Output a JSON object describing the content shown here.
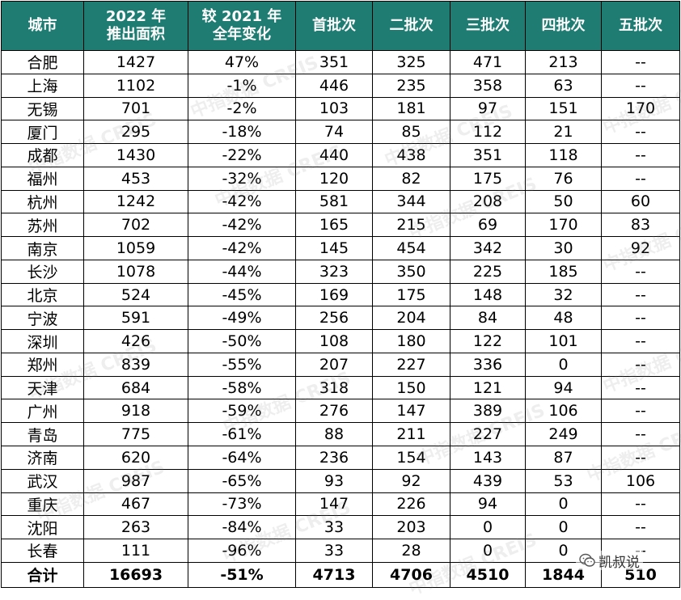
{
  "table": {
    "headers": [
      {
        "line1": "城市",
        "line2": ""
      },
      {
        "line1": "2022 年",
        "line2": "推出面积"
      },
      {
        "line1": "较 2021 年",
        "line2": "全年变化"
      },
      {
        "line1": "首批次",
        "line2": ""
      },
      {
        "line1": "二批次",
        "line2": ""
      },
      {
        "line1": "三批次",
        "line2": ""
      },
      {
        "line1": "四批次",
        "line2": ""
      },
      {
        "line1": "五批次",
        "line2": ""
      }
    ],
    "rows": [
      {
        "city": "合肥",
        "area": "1427",
        "change": "47%",
        "b1": "351",
        "b2": "325",
        "b3": "471",
        "b4": "213",
        "b5": "--"
      },
      {
        "city": "上海",
        "area": "1102",
        "change": "-1%",
        "b1": "446",
        "b2": "235",
        "b3": "358",
        "b4": "63",
        "b5": "--"
      },
      {
        "city": "无锡",
        "area": "701",
        "change": "-2%",
        "b1": "103",
        "b2": "181",
        "b3": "97",
        "b4": "151",
        "b5": "170"
      },
      {
        "city": "厦门",
        "area": "295",
        "change": "-18%",
        "b1": "74",
        "b2": "85",
        "b3": "112",
        "b4": "21",
        "b5": "--"
      },
      {
        "city": "成都",
        "area": "1430",
        "change": "-22%",
        "b1": "440",
        "b2": "438",
        "b3": "351",
        "b4": "118",
        "b5": "--"
      },
      {
        "city": "福州",
        "area": "453",
        "change": "-32%",
        "b1": "120",
        "b2": "82",
        "b3": "175",
        "b4": "76",
        "b5": "--"
      },
      {
        "city": "杭州",
        "area": "1242",
        "change": "-42%",
        "b1": "581",
        "b2": "344",
        "b3": "208",
        "b4": "50",
        "b5": "60"
      },
      {
        "city": "苏州",
        "area": "702",
        "change": "-42%",
        "b1": "165",
        "b2": "215",
        "b3": "69",
        "b4": "170",
        "b5": "83"
      },
      {
        "city": "南京",
        "area": "1059",
        "change": "-42%",
        "b1": "145",
        "b2": "454",
        "b3": "342",
        "b4": "30",
        "b5": "92"
      },
      {
        "city": "长沙",
        "area": "1078",
        "change": "-44%",
        "b1": "323",
        "b2": "350",
        "b3": "225",
        "b4": "185",
        "b5": "--"
      },
      {
        "city": "北京",
        "area": "524",
        "change": "-45%",
        "b1": "169",
        "b2": "175",
        "b3": "148",
        "b4": "32",
        "b5": "--"
      },
      {
        "city": "宁波",
        "area": "591",
        "change": "-49%",
        "b1": "256",
        "b2": "204",
        "b3": "84",
        "b4": "48",
        "b5": "--"
      },
      {
        "city": "深圳",
        "area": "426",
        "change": "-50%",
        "b1": "108",
        "b2": "180",
        "b3": "122",
        "b4": "101",
        "b5": "--"
      },
      {
        "city": "郑州",
        "area": "839",
        "change": "-55%",
        "b1": "207",
        "b2": "227",
        "b3": "336",
        "b4": "0",
        "b5": "--"
      },
      {
        "city": "天津",
        "area": "684",
        "change": "-58%",
        "b1": "318",
        "b2": "150",
        "b3": "121",
        "b4": "94",
        "b5": "--"
      },
      {
        "city": "广州",
        "area": "918",
        "change": "-59%",
        "b1": "276",
        "b2": "147",
        "b3": "389",
        "b4": "106",
        "b5": "--"
      },
      {
        "city": "青岛",
        "area": "775",
        "change": "-61%",
        "b1": "88",
        "b2": "211",
        "b3": "227",
        "b4": "249",
        "b5": "--"
      },
      {
        "city": "济南",
        "area": "620",
        "change": "-64%",
        "b1": "236",
        "b2": "154",
        "b3": "143",
        "b4": "87",
        "b5": "--"
      },
      {
        "city": "武汉",
        "area": "987",
        "change": "-65%",
        "b1": "93",
        "b2": "92",
        "b3": "439",
        "b4": "53",
        "b5": "106"
      },
      {
        "city": "重庆",
        "area": "467",
        "change": "-73%",
        "b1": "147",
        "b2": "226",
        "b3": "94",
        "b4": "0",
        "b5": "--"
      },
      {
        "city": "沈阳",
        "area": "263",
        "change": "-84%",
        "b1": "33",
        "b2": "203",
        "b3": "0",
        "b4": "0",
        "b5": "--"
      },
      {
        "city": "长春",
        "area": "111",
        "change": "-96%",
        "b1": "33",
        "b2": "28",
        "b3": "0",
        "b4": "0",
        "b5": "--"
      }
    ],
    "total": {
      "city": "合计",
      "area": "16693",
      "change": "-51%",
      "b1": "4713",
      "b2": "4706",
      "b3": "4510",
      "b4": "1844",
      "b5": "510"
    }
  },
  "watermark": {
    "text": "中指数据 CREIS"
  },
  "badge": {
    "label": "凯叔说",
    "icon": "wechat-icon"
  },
  "colors": {
    "header_bg": "#1e7c72",
    "positive": "#e60000",
    "negative": "#00a84f"
  }
}
